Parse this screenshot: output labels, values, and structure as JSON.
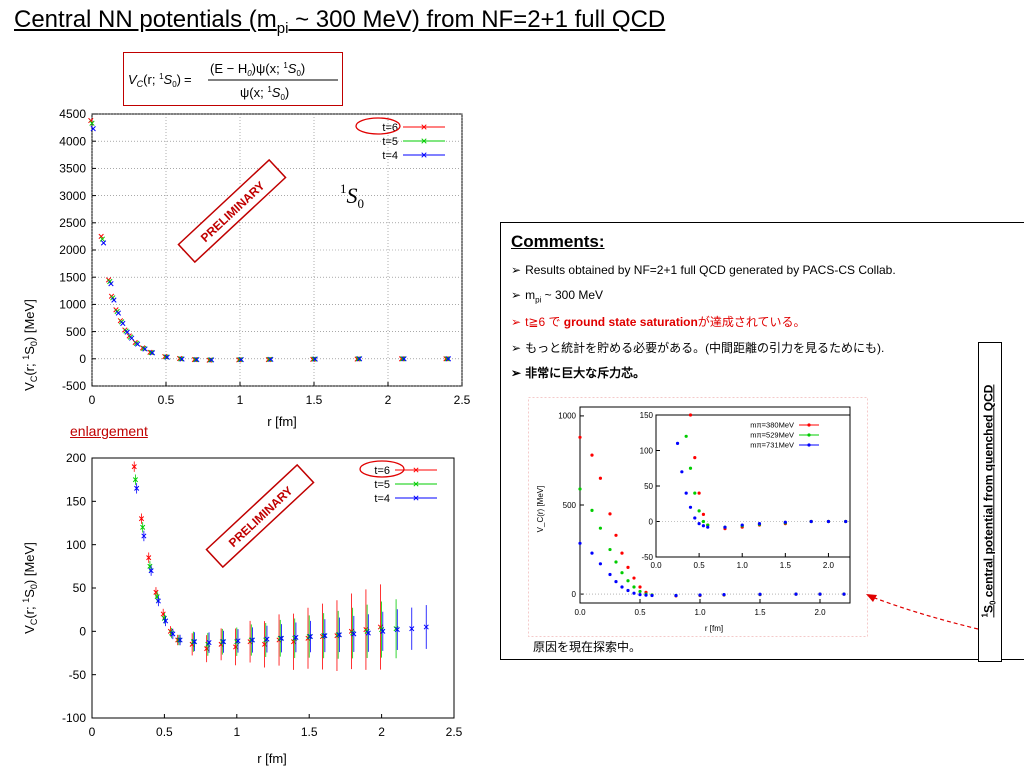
{
  "title": {
    "prefix": "Central NN potentials (m",
    "sub": "pi",
    "suffix": " ~ 300 MeV) from NF=2+1 full QCD"
  },
  "formula": {
    "lhs": "V",
    "lhs_sub": "C",
    "lhs_arg": "(r; ",
    "state_sup": "1",
    "state": "S",
    "state_sub": "0",
    "close": ")",
    "numerator": "(E − H",
    "numerator_sub": "0",
    "numerator_rest": ")ψ(x; ",
    "denominator": "ψ(x; "
  },
  "state_label": {
    "sup": "1",
    "letter": "S",
    "sub": "0"
  },
  "preliminary": "PRELIMINARY",
  "enlargement": "enlargement",
  "comments": {
    "title": "Comments:",
    "line1": "Results obtained by NF=2+1 full QCD generated by PACS-CS Collab.",
    "line2_prefix": "m",
    "line2_sub": "pi",
    "line2_suffix": " ~ 300 MeV",
    "line3_a": "t≧6 で ",
    "line3_b": "ground state saturation",
    "line3_c": "が達成されている。",
    "line4": "もっと統計を貯める必要がある。(中間距離の引力を見るためにも).",
    "line5": "非常に巨大な斥力芯。",
    "inset_caption": "原因を現在探索中。"
  },
  "side_label": {
    "sup": "1",
    "letter": "S",
    "sub": "0",
    "rest": " central potential from quenched QCD"
  },
  "colors": {
    "red": "#c00000",
    "t6": "#ff0000",
    "t5": "#00cc00",
    "t4": "#0000ff"
  },
  "chart_data": [
    {
      "type": "scatter",
      "ylabel_main": "V",
      "ylabel_sub": "C",
      "ylabel_rest": "(r; ",
      "ylabel_sup": "1",
      "ylabel_state": "S",
      "ylabel_state_sub": "0",
      "ylabel_end": ") [MeV]",
      "xlabel": "r [fm]",
      "xlim": [
        0,
        2.5
      ],
      "ylim": [
        -500,
        4500
      ],
      "xticks": [
        "0",
        "0.5",
        "1",
        "1.5",
        "2",
        "2.5"
      ],
      "yticks": [
        "-500",
        "0",
        "500",
        "1000",
        "1500",
        "2000",
        "2500",
        "3000",
        "3500",
        "4000",
        "4500"
      ],
      "grid": true,
      "legend": "top-right",
      "series": [
        {
          "name": "t=6",
          "x": [
            0.0,
            0.07,
            0.12,
            0.14,
            0.17,
            0.2,
            0.23,
            0.26,
            0.3,
            0.35,
            0.4,
            0.5,
            0.6,
            0.7,
            0.8,
            1.0,
            1.2,
            1.5,
            1.8,
            2.1,
            2.4
          ],
          "y": [
            4380,
            2250,
            1450,
            1150,
            900,
            700,
            530,
            420,
            300,
            200,
            120,
            40,
            5,
            -15,
            -25,
            -20,
            -15,
            -10,
            -5,
            0,
            0
          ]
        },
        {
          "name": "t=5",
          "x": [
            0.0,
            0.07,
            0.12,
            0.14,
            0.17,
            0.2,
            0.23,
            0.26,
            0.3,
            0.35,
            0.4,
            0.5,
            0.6,
            0.7,
            0.8,
            1.0,
            1.2,
            1.5,
            1.8,
            2.1,
            2.4
          ],
          "y": [
            4330,
            2200,
            1420,
            1120,
            870,
            680,
            510,
            400,
            285,
            190,
            115,
            35,
            0,
            -15,
            -20,
            -15,
            -10,
            -5,
            0,
            0,
            0
          ]
        },
        {
          "name": "t=4",
          "x": [
            0.0,
            0.07,
            0.12,
            0.14,
            0.17,
            0.2,
            0.23,
            0.26,
            0.3,
            0.35,
            0.4,
            0.5,
            0.6,
            0.7,
            0.8,
            1.0,
            1.2,
            1.5,
            1.8,
            2.1,
            2.4
          ],
          "y": [
            4230,
            2130,
            1380,
            1080,
            840,
            650,
            490,
            380,
            270,
            180,
            110,
            30,
            -5,
            -15,
            -20,
            -15,
            -10,
            -5,
            0,
            0,
            0
          ]
        }
      ]
    },
    {
      "type": "scatter",
      "ylabel_main": "V",
      "ylabel_sub": "C",
      "ylabel_rest": "(r; ",
      "ylabel_sup": "1",
      "ylabel_state": "S",
      "ylabel_state_sub": "0",
      "ylabel_end": ") [MeV]",
      "xlabel": "r [fm]",
      "xlim": [
        0,
        2.5
      ],
      "ylim": [
        -100,
        200
      ],
      "xticks": [
        "0",
        "0.5",
        "1",
        "1.5",
        "2",
        "2.5"
      ],
      "yticks": [
        "-100",
        "-50",
        "0",
        "50",
        "100",
        "150",
        "200"
      ],
      "grid": false,
      "legend": "top-right",
      "series": [
        {
          "name": "t=6",
          "x": [
            0.3,
            0.35,
            0.4,
            0.45,
            0.5,
            0.55,
            0.6,
            0.7,
            0.8,
            0.9,
            1.0,
            1.1,
            1.2,
            1.3,
            1.4,
            1.5,
            1.6,
            1.7,
            1.8,
            1.9,
            2.0
          ],
          "y": [
            190,
            130,
            85,
            45,
            20,
            0,
            -10,
            -15,
            -20,
            -15,
            -18,
            -12,
            -15,
            -10,
            -12,
            -8,
            -6,
            -5,
            0,
            2,
            5
          ]
        },
        {
          "name": "t=5",
          "x": [
            0.3,
            0.35,
            0.4,
            0.45,
            0.5,
            0.55,
            0.6,
            0.7,
            0.8,
            0.9,
            1.0,
            1.1,
            1.2,
            1.3,
            1.4,
            1.5,
            1.6,
            1.7,
            1.8,
            1.9,
            2.0,
            2.1
          ],
          "y": [
            175,
            120,
            75,
            40,
            15,
            -2,
            -10,
            -12,
            -15,
            -12,
            -12,
            -10,
            -10,
            -8,
            -8,
            -6,
            -5,
            -4,
            -2,
            0,
            2,
            3
          ]
        },
        {
          "name": "t=4",
          "x": [
            0.3,
            0.35,
            0.4,
            0.45,
            0.5,
            0.55,
            0.6,
            0.7,
            0.8,
            0.9,
            1.0,
            1.1,
            1.2,
            1.3,
            1.4,
            1.5,
            1.6,
            1.7,
            1.8,
            1.9,
            2.0,
            2.1,
            2.2,
            2.3
          ],
          "y": [
            165,
            110,
            70,
            35,
            12,
            -3,
            -10,
            -12,
            -13,
            -12,
            -11,
            -10,
            -9,
            -8,
            -7,
            -6,
            -5,
            -4,
            -3,
            -2,
            0,
            2,
            3,
            5
          ]
        }
      ]
    },
    {
      "type": "scatter",
      "ylabel": "V_C(r) [MeV]",
      "xlabel": "r [fm]",
      "xlim": [
        0,
        2.25
      ],
      "ylim": [
        -50,
        1050
      ],
      "xticks": [
        "0.0",
        "0.5",
        "1.0",
        "1.5",
        "2.0"
      ],
      "yticks": [
        "0",
        "500",
        "1000"
      ],
      "legend": "top-right",
      "series": [
        {
          "name": "mπ=380MeV",
          "x": [
            0.0,
            0.1,
            0.17,
            0.25,
            0.3,
            0.35,
            0.4,
            0.45,
            0.5,
            0.55,
            0.6,
            0.8,
            1.0,
            1.2,
            1.5,
            1.8,
            2.0,
            2.2
          ],
          "y": [
            880,
            780,
            650,
            450,
            330,
            230,
            150,
            90,
            40,
            10,
            -5,
            -10,
            -8,
            -5,
            -3,
            0,
            0,
            0
          ]
        },
        {
          "name": "mπ=529MeV",
          "x": [
            0.0,
            0.1,
            0.17,
            0.25,
            0.3,
            0.35,
            0.4,
            0.45,
            0.5,
            0.55,
            0.6,
            0.8,
            1.0,
            1.2,
            1.5,
            1.8,
            2.0,
            2.2
          ],
          "y": [
            590,
            470,
            370,
            250,
            180,
            120,
            75,
            40,
            15,
            0,
            -5,
            -8,
            -6,
            -4,
            -2,
            0,
            0,
            0
          ]
        },
        {
          "name": "mπ=731MeV",
          "x": [
            0.0,
            0.1,
            0.17,
            0.25,
            0.3,
            0.35,
            0.4,
            0.45,
            0.5,
            0.55,
            0.6,
            0.8,
            1.0,
            1.2,
            1.5,
            1.8,
            2.0,
            2.2
          ],
          "y": [
            285,
            230,
            170,
            110,
            70,
            40,
            20,
            5,
            -3,
            -6,
            -8,
            -8,
            -5,
            -3,
            -1,
            0,
            0,
            0
          ]
        }
      ],
      "inset": {
        "xlim": [
          0,
          2.25
        ],
        "ylim": [
          -50,
          150
        ],
        "xticks": [
          "0.0",
          "0.5",
          "1.0",
          "1.5",
          "2.0"
        ],
        "yticks": [
          "-50",
          "0",
          "50",
          "100",
          "150"
        ]
      }
    }
  ]
}
